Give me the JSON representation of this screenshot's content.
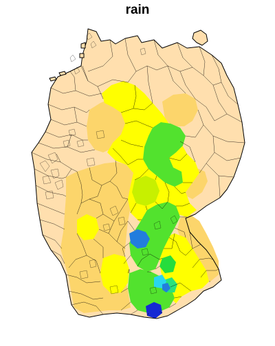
{
  "title": "rain",
  "map": {
    "variable": "rain",
    "colors": {
      "peach": "#ffdfae",
      "light-orange": "#fcd56b",
      "yellow": "#ffff00",
      "yellow-green": "#c7f000",
      "green": "#52e22e",
      "bright-green": "#26dd3c",
      "teal-green": "#27e27d",
      "light-blue": "#29d6ee",
      "blue": "#227ddd",
      "dark-blue": "#1529d4"
    }
  }
}
